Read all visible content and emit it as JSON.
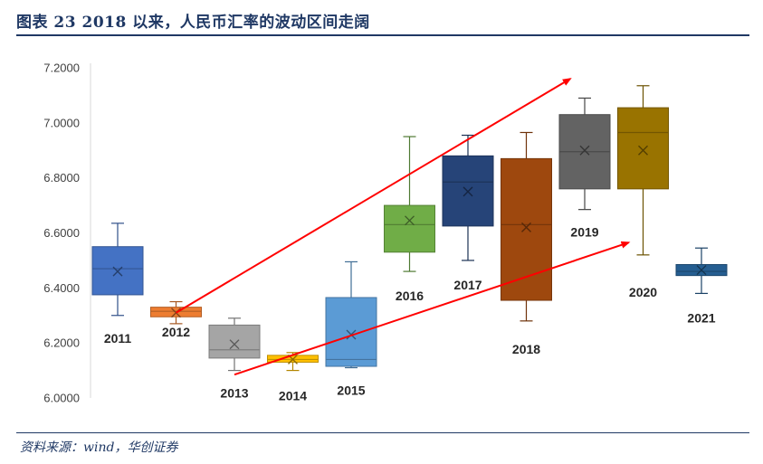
{
  "figure": {
    "title": "图表 23   2018 以来，人民币汇率的波动区间走阔",
    "source": "资料来源：wind，华创证券"
  },
  "chart_data": {
    "type": "box",
    "ylim": [
      6.0,
      7.2
    ],
    "yticks": [
      "6.0000",
      "6.2000",
      "6.4000",
      "6.6000",
      "6.8000",
      "7.0000",
      "7.2000"
    ],
    "grid": false,
    "boxes": [
      {
        "label": "2011",
        "min": 6.3,
        "q1": 6.375,
        "median": 6.47,
        "q3": 6.55,
        "max": 6.635,
        "mean": 6.46,
        "color": "#4472c4"
      },
      {
        "label": "2012",
        "min": 6.27,
        "q1": 6.295,
        "median": 6.315,
        "q3": 6.33,
        "max": 6.35,
        "mean": 6.31,
        "color": "#ed7d31"
      },
      {
        "label": "2013",
        "min": 6.1,
        "q1": 6.145,
        "median": 6.175,
        "q3": 6.265,
        "max": 6.29,
        "mean": 6.195,
        "color": "#a5a5a5"
      },
      {
        "label": "2014",
        "min": 6.1,
        "q1": 6.13,
        "median": 6.14,
        "q3": 6.155,
        "max": 6.165,
        "mean": 6.14,
        "color": "#ffc000"
      },
      {
        "label": "2015",
        "min": 6.11,
        "q1": 6.115,
        "median": 6.14,
        "q3": 6.365,
        "max": 6.495,
        "mean": 6.23,
        "color": "#5b9bd5"
      },
      {
        "label": "2016",
        "min": 6.46,
        "q1": 6.53,
        "median": 6.63,
        "q3": 6.7,
        "max": 6.95,
        "mean": 6.645,
        "color": "#70ad47"
      },
      {
        "label": "2017",
        "min": 6.5,
        "q1": 6.625,
        "median": 6.785,
        "q3": 6.88,
        "max": 6.955,
        "mean": 6.75,
        "color": "#264478"
      },
      {
        "label": "2018",
        "min": 6.28,
        "q1": 6.355,
        "median": 6.63,
        "q3": 6.87,
        "max": 6.965,
        "mean": 6.62,
        "color": "#9e480e"
      },
      {
        "label": "2019",
        "min": 6.685,
        "q1": 6.76,
        "median": 6.895,
        "q3": 7.03,
        "max": 7.09,
        "mean": 6.9,
        "color": "#636363"
      },
      {
        "label": "2020",
        "min": 6.52,
        "q1": 6.76,
        "median": 6.965,
        "q3": 7.055,
        "max": 7.135,
        "mean": 6.9,
        "color": "#997300"
      },
      {
        "label": "2021",
        "min": 6.38,
        "q1": 6.445,
        "median": 6.46,
        "q3": 6.485,
        "max": 6.545,
        "mean": 6.465,
        "color": "#255e91"
      }
    ],
    "trend_arrows": [
      {
        "from": {
          "x": "2012",
          "y": 6.31
        },
        "to": {
          "x": "2019",
          "y": 7.16
        }
      },
      {
        "from": {
          "x": "2013",
          "y": 6.085
        },
        "to": {
          "x": "2020",
          "y": 6.565
        }
      }
    ],
    "colors": {
      "arrow": "#ff0000",
      "axis": "#d9d9d9",
      "title": "#1f3864"
    }
  }
}
